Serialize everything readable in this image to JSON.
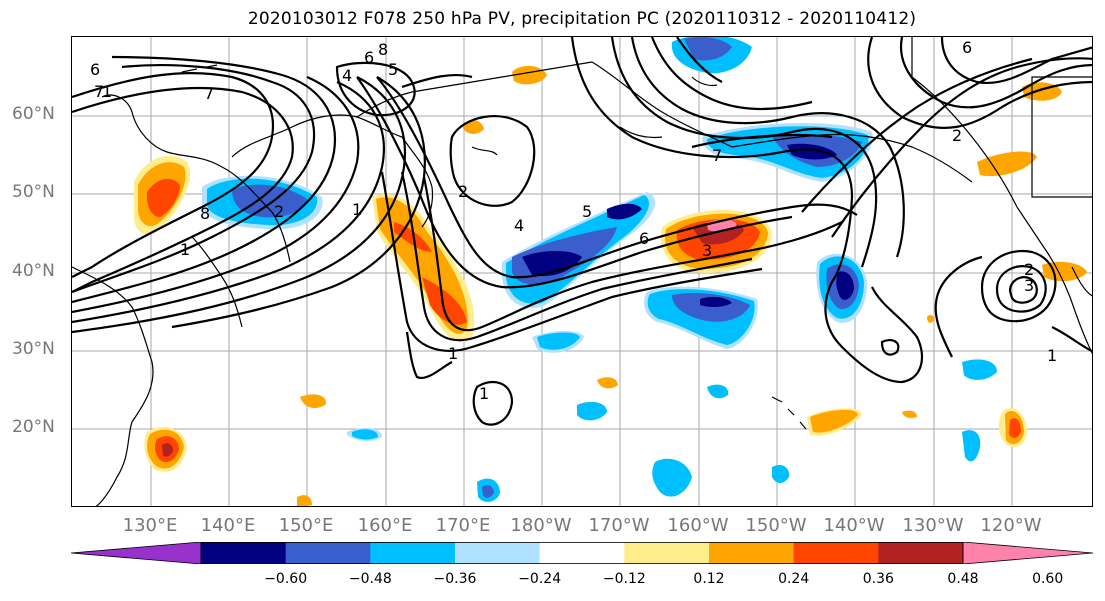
{
  "title": "2020103012 F078 250 hPa PV, precipitation PC (2020110312 - 2020110412)",
  "lat_labels": [
    "60°N",
    "50°N",
    "40°N",
    "30°N",
    "20°N"
  ],
  "lon_labels": [
    "130°E",
    "140°E",
    "150°E",
    "160°E",
    "170°E",
    "180°W",
    "170°W",
    "160°W",
    "150°W",
    "140°W",
    "130°W",
    "120°W"
  ],
  "colorbar": {
    "ticks": [
      "−0.60",
      "−0.48",
      "−0.36",
      "−0.24",
      "−0.12",
      "0.12",
      "0.24",
      "0.36",
      "0.48",
      "0.60"
    ],
    "colors": [
      "#9932CC",
      "#000080",
      "#3A5FCD",
      "#00BFFF",
      "#B0E2FF",
      "#FFFFFF",
      "#FFEC8B",
      "#FFA500",
      "#FF4500",
      "#B22222",
      "#FF82AB"
    ]
  },
  "contour_labels": [
    "6",
    "7",
    "6",
    "4",
    "8",
    "5",
    "7",
    "1",
    "8",
    "2",
    "1",
    "1",
    "4",
    "5",
    "6",
    "3",
    "1",
    "1",
    "2",
    "6",
    "2",
    "7",
    "2",
    "3",
    "1"
  ]
}
